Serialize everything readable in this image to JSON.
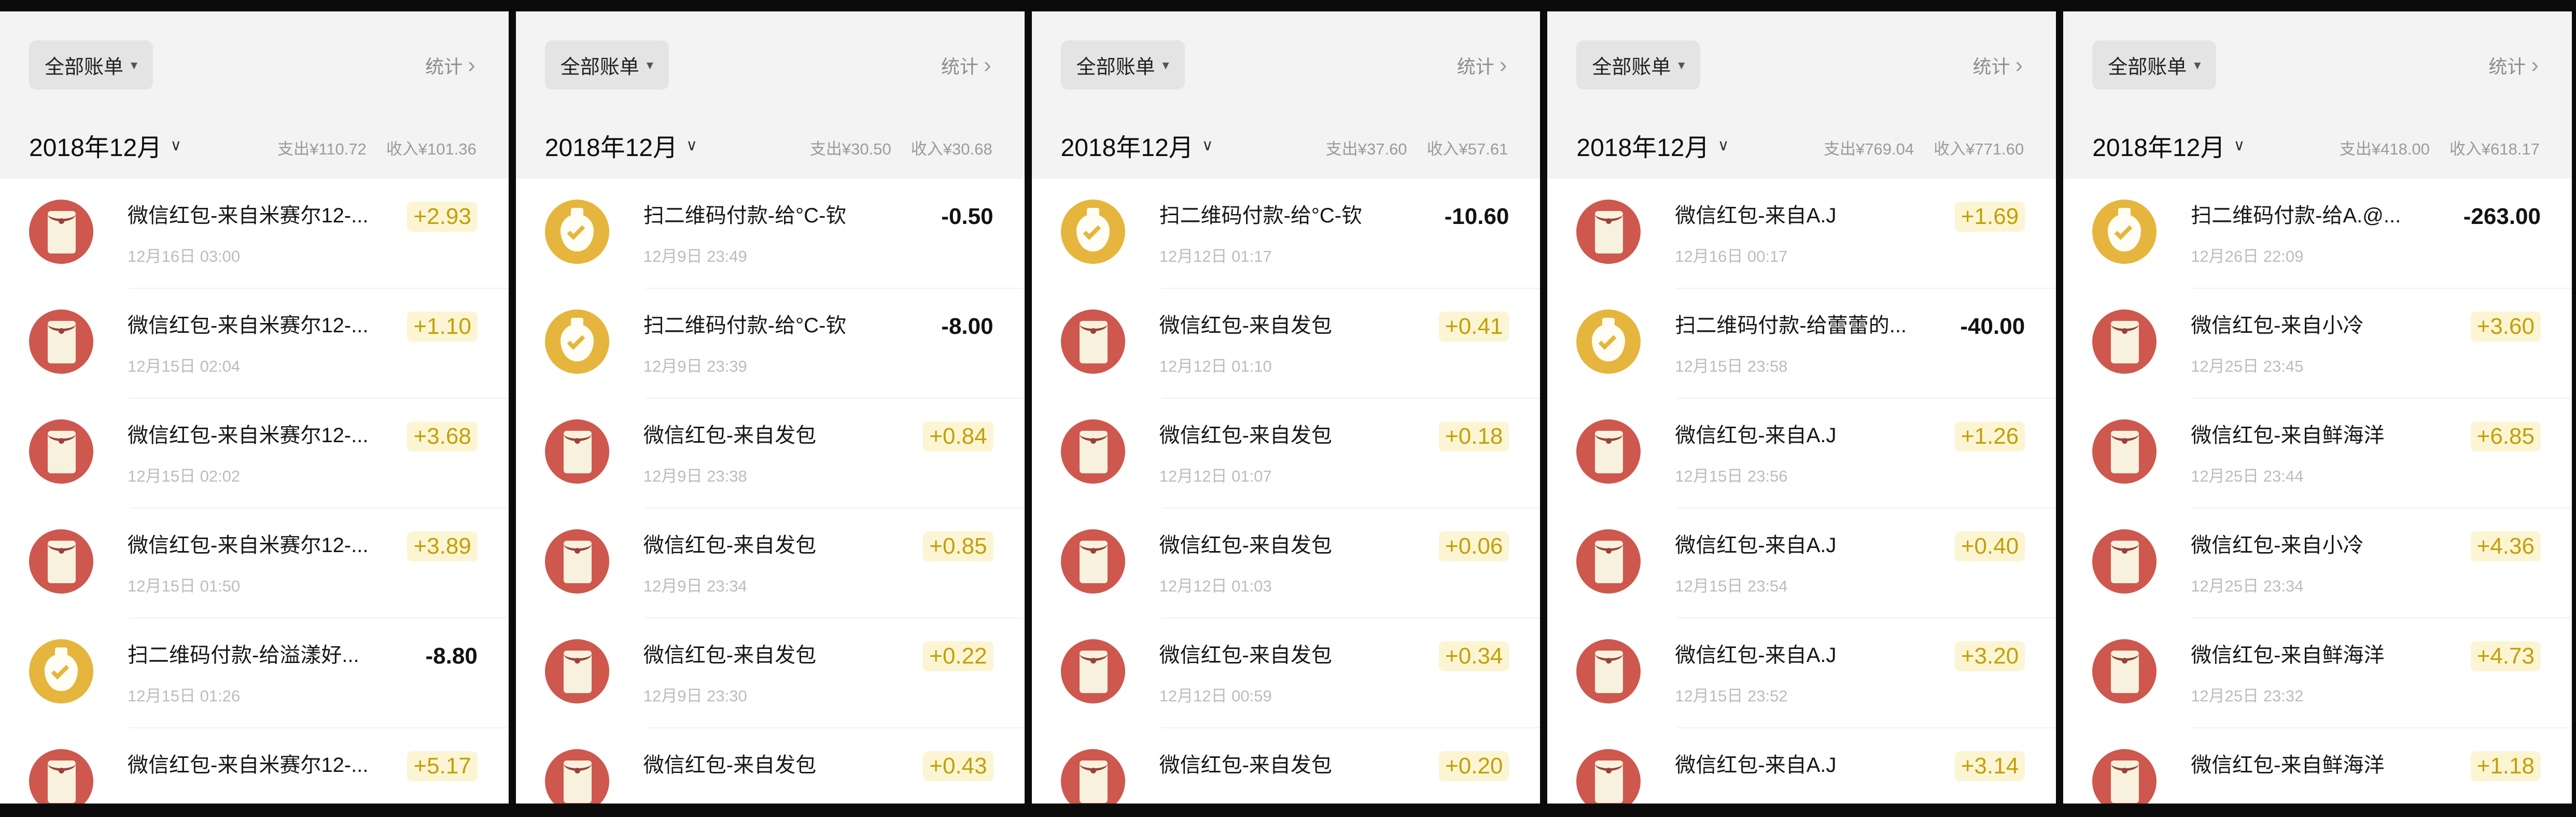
{
  "icons": {
    "filter_caret": "▾",
    "chevron_right": "›",
    "month_caret": "∨"
  },
  "colors": {
    "income_text": "#c2a007",
    "income_bg": "#fbf5d3",
    "expense_text": "#121212",
    "red_envelope_icon": "#ce574e",
    "money_bag_icon": "#e5b53d",
    "header_bg": "#f3f3f3"
  },
  "panels": [
    {
      "filter_label": "全部账单",
      "stats_label": "统计",
      "month": "2018年12月",
      "expense_summary": "支出¥110.72",
      "income_summary": "收入¥101.36",
      "transactions": [
        {
          "icon": "red-envelope",
          "title": "微信红包-来自米赛尔12-...",
          "date": "12月16日 03:00",
          "amount": "+2.93",
          "type": "income"
        },
        {
          "icon": "red-envelope",
          "title": "微信红包-来自米赛尔12-...",
          "date": "12月15日 02:04",
          "amount": "+1.10",
          "type": "income"
        },
        {
          "icon": "red-envelope",
          "title": "微信红包-来自米赛尔12-...",
          "date": "12月15日 02:02",
          "amount": "+3.68",
          "type": "income"
        },
        {
          "icon": "red-envelope",
          "title": "微信红包-来自米赛尔12-...",
          "date": "12月15日 01:50",
          "amount": "+3.89",
          "type": "income"
        },
        {
          "icon": "money-bag",
          "title": "扫二维码付款-给溢漾好...",
          "date": "12月15日 01:26",
          "amount": "-8.80",
          "type": "expense"
        },
        {
          "icon": "red-envelope",
          "title": "微信红包-来自米赛尔12-...",
          "date": "",
          "amount": "+5.17",
          "type": "income"
        }
      ]
    },
    {
      "filter_label": "全部账单",
      "stats_label": "统计",
      "month": "2018年12月",
      "expense_summary": "支出¥30.50",
      "income_summary": "收入¥30.68",
      "transactions": [
        {
          "icon": "money-bag",
          "title": "扫二维码付款-给°C-钦",
          "date": "12月9日 23:49",
          "amount": "-0.50",
          "type": "expense"
        },
        {
          "icon": "money-bag",
          "title": "扫二维码付款-给°C-钦",
          "date": "12月9日 23:39",
          "amount": "-8.00",
          "type": "expense"
        },
        {
          "icon": "red-envelope",
          "title": "微信红包-来自发包",
          "date": "12月9日 23:38",
          "amount": "+0.84",
          "type": "income"
        },
        {
          "icon": "red-envelope",
          "title": "微信红包-来自发包",
          "date": "12月9日 23:34",
          "amount": "+0.85",
          "type": "income"
        },
        {
          "icon": "red-envelope",
          "title": "微信红包-来自发包",
          "date": "12月9日 23:30",
          "amount": "+0.22",
          "type": "income"
        },
        {
          "icon": "red-envelope",
          "title": "微信红包-来自发包",
          "date": "",
          "amount": "+0.43",
          "type": "income"
        }
      ]
    },
    {
      "filter_label": "全部账单",
      "stats_label": "统计",
      "month": "2018年12月",
      "expense_summary": "支出¥37.60",
      "income_summary": "收入¥57.61",
      "transactions": [
        {
          "icon": "money-bag",
          "title": "扫二维码付款-给°C-钦",
          "date": "12月12日 01:17",
          "amount": "-10.60",
          "type": "expense"
        },
        {
          "icon": "red-envelope",
          "title": "微信红包-来自发包",
          "date": "12月12日 01:10",
          "amount": "+0.41",
          "type": "income"
        },
        {
          "icon": "red-envelope",
          "title": "微信红包-来自发包",
          "date": "12月12日 01:07",
          "amount": "+0.18",
          "type": "income"
        },
        {
          "icon": "red-envelope",
          "title": "微信红包-来自发包",
          "date": "12月12日 01:03",
          "amount": "+0.06",
          "type": "income"
        },
        {
          "icon": "red-envelope",
          "title": "微信红包-来自发包",
          "date": "12月12日 00:59",
          "amount": "+0.34",
          "type": "income"
        },
        {
          "icon": "red-envelope",
          "title": "微信红包-来自发包",
          "date": "",
          "amount": "+0.20",
          "type": "income"
        }
      ]
    },
    {
      "filter_label": "全部账单",
      "stats_label": "统计",
      "month": "2018年12月",
      "expense_summary": "支出¥769.04",
      "income_summary": "收入¥771.60",
      "transactions": [
        {
          "icon": "red-envelope",
          "title": "微信红包-来自A.J",
          "date": "12月16日 00:17",
          "amount": "+1.69",
          "type": "income"
        },
        {
          "icon": "money-bag",
          "title": "扫二维码付款-给蕾蕾的...",
          "date": "12月15日 23:58",
          "amount": "-40.00",
          "type": "expense"
        },
        {
          "icon": "red-envelope",
          "title": "微信红包-来自A.J",
          "date": "12月15日 23:56",
          "amount": "+1.26",
          "type": "income"
        },
        {
          "icon": "red-envelope",
          "title": "微信红包-来自A.J",
          "date": "12月15日 23:54",
          "amount": "+0.40",
          "type": "income"
        },
        {
          "icon": "red-envelope",
          "title": "微信红包-来自A.J",
          "date": "12月15日 23:52",
          "amount": "+3.20",
          "type": "income"
        },
        {
          "icon": "red-envelope",
          "title": "微信红包-来自A.J",
          "date": "",
          "amount": "+3.14",
          "type": "income"
        }
      ]
    },
    {
      "filter_label": "全部账单",
      "stats_label": "统计",
      "month": "2018年12月",
      "expense_summary": "支出¥418.00",
      "income_summary": "收入¥618.17",
      "transactions": [
        {
          "icon": "money-bag",
          "title": "扫二维码付款-给A.@...",
          "date": "12月26日 22:09",
          "amount": "-263.00",
          "type": "expense"
        },
        {
          "icon": "red-envelope",
          "title": "微信红包-来自小冷",
          "date": "12月25日 23:45",
          "amount": "+3.60",
          "type": "income"
        },
        {
          "icon": "red-envelope",
          "title": "微信红包-来自鲜海洋",
          "date": "12月25日 23:44",
          "amount": "+6.85",
          "type": "income"
        },
        {
          "icon": "red-envelope",
          "title": "微信红包-来自小冷",
          "date": "12月25日 23:34",
          "amount": "+4.36",
          "type": "income"
        },
        {
          "icon": "red-envelope",
          "title": "微信红包-来自鲜海洋",
          "date": "12月25日 23:32",
          "amount": "+4.73",
          "type": "income"
        },
        {
          "icon": "red-envelope",
          "title": "微信红包-来自鲜海洋",
          "date": "",
          "amount": "+1.18",
          "type": "income"
        }
      ]
    }
  ]
}
